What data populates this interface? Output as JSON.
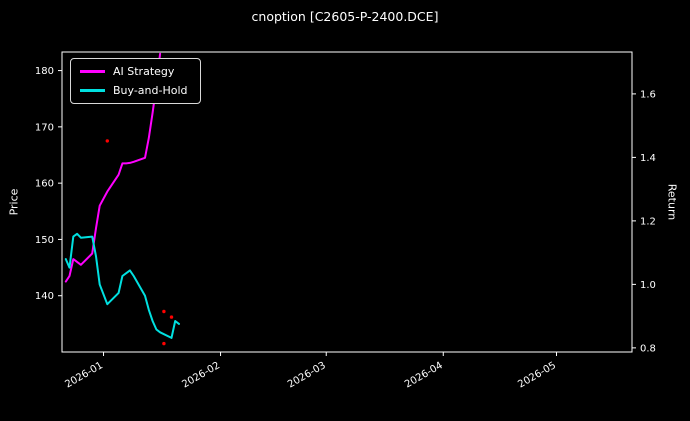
{
  "chart_data": {
    "type": "line",
    "title": "cnoption [C2605-P-2400.DCE]",
    "ylabel_left": "Price",
    "ylabel_right": "Return",
    "background_color": "#000000",
    "text_color": "#ffffff",
    "frame_color": "#ffffff",
    "grid": false,
    "legend_position": "top-left",
    "x_domain": [
      "2025-12-21",
      "2026-05-21"
    ],
    "x_ticks": [
      {
        "date": "2026-01-01",
        "label": "2026-01"
      },
      {
        "date": "2026-02-01",
        "label": "2026-02"
      },
      {
        "date": "2026-03-01",
        "label": "2026-03"
      },
      {
        "date": "2026-04-01",
        "label": "2026-04"
      },
      {
        "date": "2026-05-01",
        "label": "2026-05"
      }
    ],
    "left_axis": {
      "ticks": [
        "140",
        "150",
        "160",
        "170",
        "180"
      ],
      "range": [
        130.0,
        183.3
      ]
    },
    "right_axis": {
      "ticks": [
        "0.8",
        "1.0",
        "1.2",
        "1.4",
        "1.6"
      ],
      "range": [
        0.787,
        1.732
      ]
    },
    "dates": [
      "2025-12-22",
      "2025-12-23",
      "2025-12-24",
      "2025-12-25",
      "2025-12-26",
      "2025-12-29",
      "2025-12-30",
      "2025-12-31",
      "2026-01-02",
      "2026-01-05",
      "2026-01-06",
      "2026-01-07",
      "2026-01-08",
      "2026-01-09",
      "2026-01-12",
      "2026-01-13",
      "2026-01-14",
      "2026-01-15",
      "2026-01-16",
      "2026-01-19",
      "2026-01-20",
      "2026-01-21"
    ],
    "series": [
      {
        "name": "AI Strategy",
        "color": "#ff00ff",
        "axis": "left",
        "values": [
          142.5,
          143.5,
          146.5,
          146.0,
          145.5,
          147.5,
          152.0,
          156.0,
          158.5,
          161.5,
          163.5,
          163.5,
          163.6,
          163.8,
          164.5,
          168.0,
          172.5,
          177.5,
          183.0,
          null,
          null,
          null
        ]
      },
      {
        "name": "Buy-and-Hold",
        "color": "#00e0e0",
        "axis": "left",
        "values": [
          146.5,
          145.0,
          150.5,
          151.0,
          150.3,
          150.5,
          147.0,
          142.0,
          138.5,
          140.5,
          143.5,
          144.0,
          144.5,
          143.5,
          140.0,
          137.5,
          135.5,
          134.0,
          133.5,
          132.5,
          135.5,
          135.0
        ]
      }
    ],
    "markers": {
      "name": "trade-signals",
      "color": "#ff0000",
      "points": [
        {
          "date": "2026-01-02",
          "value": 167.5
        },
        {
          "date": "2026-01-17",
          "value": 137.2
        },
        {
          "date": "2026-01-17",
          "value": 131.5
        },
        {
          "date": "2026-01-19",
          "value": 136.2
        }
      ]
    }
  }
}
